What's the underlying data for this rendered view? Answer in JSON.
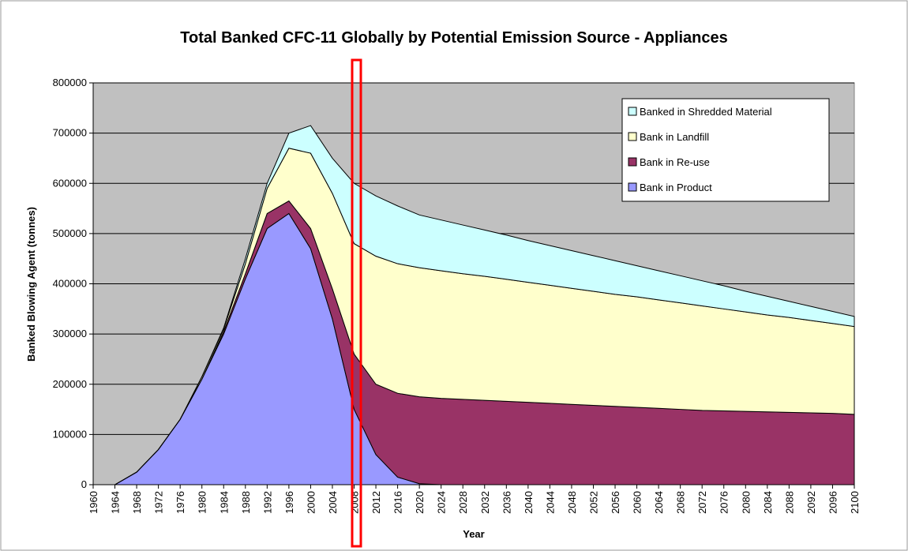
{
  "chart_data": {
    "type": "stacked_area",
    "title": "Total Banked CFC-11 Globally by Potential Emission Source - Appliances",
    "xlabel": "Year",
    "ylabel": "Banked Blowing Agent (tonnes)",
    "x": [
      1960,
      1964,
      1968,
      1972,
      1976,
      1980,
      1984,
      1988,
      1992,
      1996,
      2000,
      2004,
      2008,
      2012,
      2016,
      2020,
      2024,
      2028,
      2032,
      2036,
      2040,
      2044,
      2048,
      2052,
      2056,
      2060,
      2064,
      2068,
      2072,
      2076,
      2080,
      2084,
      2088,
      2092,
      2096,
      2100
    ],
    "xlim": [
      1960,
      2100
    ],
    "xticks": [
      1960,
      1964,
      1968,
      1972,
      1976,
      1980,
      1984,
      1988,
      1992,
      1996,
      2000,
      2004,
      2008,
      2012,
      2016,
      2020,
      2024,
      2028,
      2032,
      2036,
      2040,
      2044,
      2048,
      2052,
      2056,
      2060,
      2064,
      2068,
      2072,
      2076,
      2080,
      2084,
      2088,
      2092,
      2096,
      2100
    ],
    "ylim": [
      0,
      800000
    ],
    "yticks": [
      0,
      100000,
      200000,
      300000,
      400000,
      500000,
      600000,
      700000,
      800000
    ],
    "grid": true,
    "legend": "upper right",
    "series": [
      {
        "name": "Bank in Product",
        "color": "#9999FF",
        "values": [
          0,
          0,
          25000,
          70000,
          130000,
          210000,
          300000,
          410000,
          510000,
          540000,
          470000,
          330000,
          150000,
          60000,
          15000,
          2000,
          0,
          0,
          0,
          0,
          0,
          0,
          0,
          0,
          0,
          0,
          0,
          0,
          0,
          0,
          0,
          0,
          0,
          0,
          0,
          0
        ]
      },
      {
        "name": "Bank in Re-use",
        "color": "#993366",
        "values": [
          0,
          0,
          0,
          0,
          0,
          0,
          5000,
          10000,
          30000,
          25000,
          40000,
          60000,
          110000,
          140000,
          167000,
          173000,
          172000,
          170000,
          168000,
          166000,
          164000,
          162000,
          160000,
          158000,
          156000,
          154000,
          152000,
          150000,
          148000,
          147000,
          146000,
          145000,
          144000,
          143000,
          142000,
          140000
        ]
      },
      {
        "name": "Bank in Landfill",
        "color": "#FFFFCC",
        "values": [
          0,
          0,
          0,
          0,
          0,
          5000,
          5000,
          20000,
          50000,
          105000,
          150000,
          190000,
          220000,
          255000,
          258000,
          257000,
          254000,
          250000,
          247000,
          243000,
          239000,
          235000,
          231000,
          227000,
          223000,
          220000,
          216000,
          212000,
          208000,
          203000,
          198000,
          193000,
          189000,
          184000,
          179000,
          175000
        ]
      },
      {
        "name": "Banked in Shredded Material",
        "color": "#CCFFFF",
        "values": [
          0,
          0,
          0,
          0,
          0,
          0,
          2000,
          10000,
          10000,
          30000,
          55000,
          70000,
          120000,
          120000,
          115000,
          105000,
          101000,
          97000,
          92000,
          88000,
          83000,
          79000,
          75000,
          71000,
          67000,
          62000,
          58000,
          54000,
          50000,
          46000,
          41000,
          37000,
          32000,
          28000,
          24000,
          20000
        ]
      }
    ]
  }
}
